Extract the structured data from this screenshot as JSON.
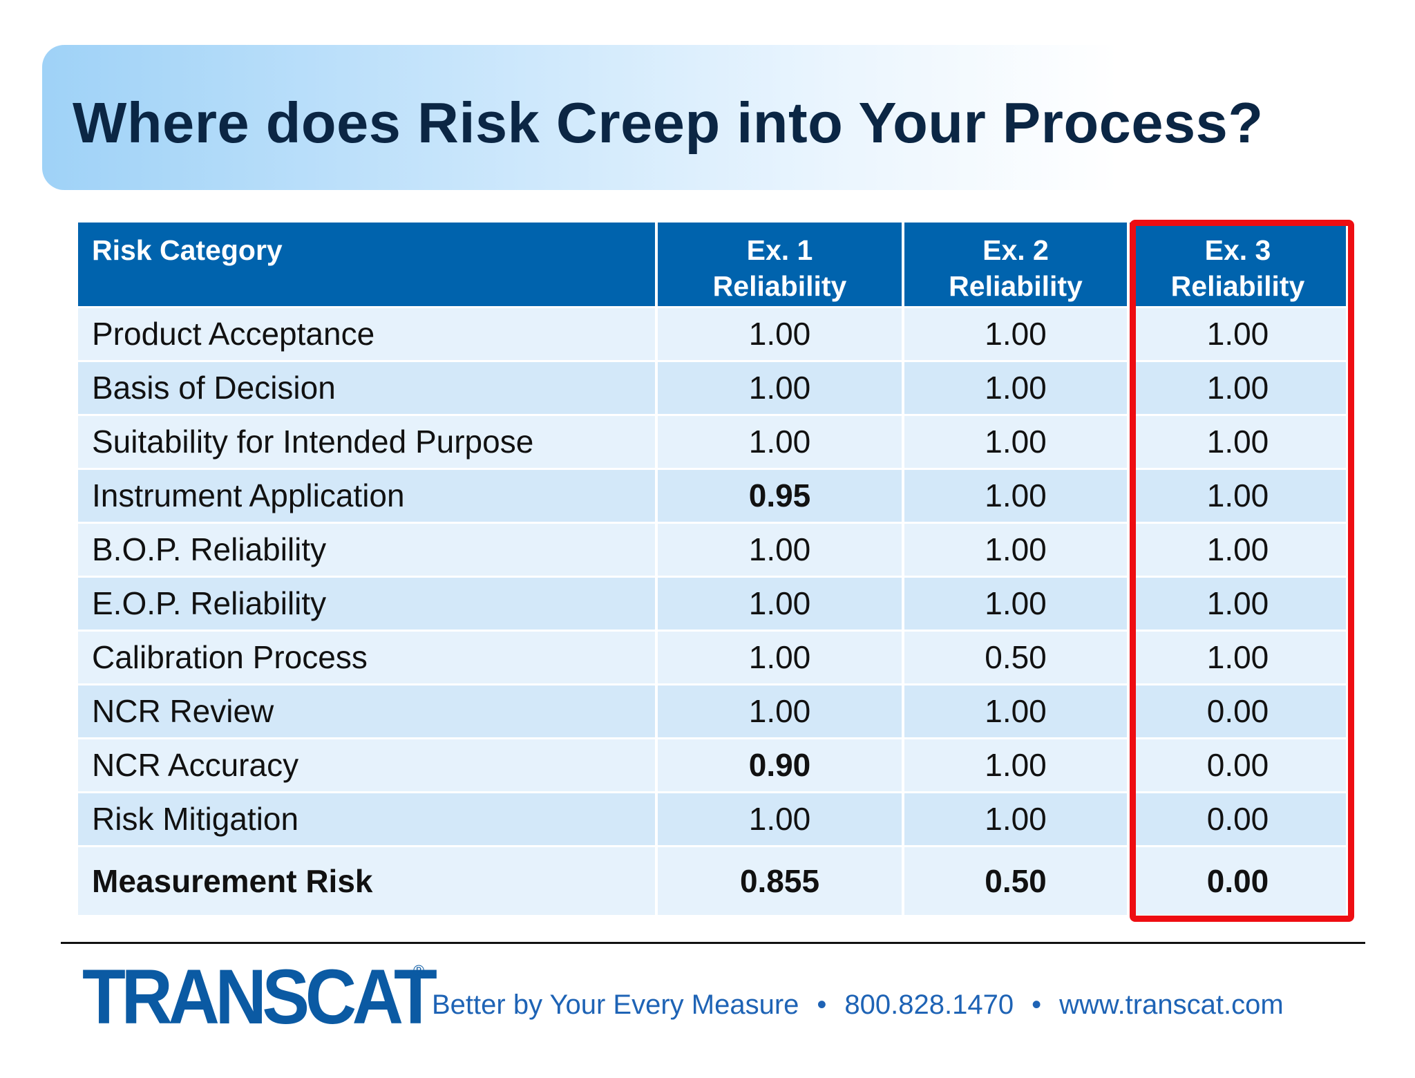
{
  "slide": {
    "title": "Where does Risk Creep into Your Process?"
  },
  "table": {
    "headers": {
      "category": "Risk Category",
      "ex1_line1": "Ex. 1",
      "ex1_line2": "Reliability",
      "ex2_line1": "Ex. 2",
      "ex2_line2": "Reliability",
      "ex3_line1": "Ex. 3",
      "ex3_line2": "Reliability"
    },
    "rows": [
      {
        "category": "Product Acceptance",
        "ex1": "1.00",
        "ex2": "1.00",
        "ex3": "1.00"
      },
      {
        "category": "Basis of Decision",
        "ex1": "1.00",
        "ex2": "1.00",
        "ex3": "1.00"
      },
      {
        "category": "Suitability for Intended Purpose",
        "ex1": "1.00",
        "ex2": "1.00",
        "ex3": "1.00"
      },
      {
        "category": "Instrument Application",
        "ex1": "0.95",
        "ex2": "1.00",
        "ex3": "1.00"
      },
      {
        "category": "B.O.P. Reliability",
        "ex1": "1.00",
        "ex2": "1.00",
        "ex3": "1.00"
      },
      {
        "category": "E.O.P. Reliability",
        "ex1": "1.00",
        "ex2": "1.00",
        "ex3": "1.00"
      },
      {
        "category": "Calibration Process",
        "ex1": "1.00",
        "ex2": "0.50",
        "ex3": "1.00"
      },
      {
        "category": "NCR Review",
        "ex1": "1.00",
        "ex2": "1.00",
        "ex3": "0.00"
      },
      {
        "category": "NCR Accuracy",
        "ex1": "0.90",
        "ex2": "1.00",
        "ex3": "0.00"
      },
      {
        "category": "Risk Mitigation",
        "ex1": "1.00",
        "ex2": "1.00",
        "ex3": "0.00"
      }
    ],
    "total": {
      "category": "Measurement Risk",
      "ex1": "0.855",
      "ex2": "0.50",
      "ex3": "0.00"
    }
  },
  "colors": {
    "header_bg": "#0063ad",
    "highlight": "#ee0d12",
    "brand": "#0b5aa3"
  },
  "footer": {
    "logo_text": "TRANSCAT",
    "registered": "®",
    "tagline": "Better by Your Every Measure",
    "separator": "•",
    "phone": "800.828.1470",
    "website": "www.transcat.com"
  }
}
